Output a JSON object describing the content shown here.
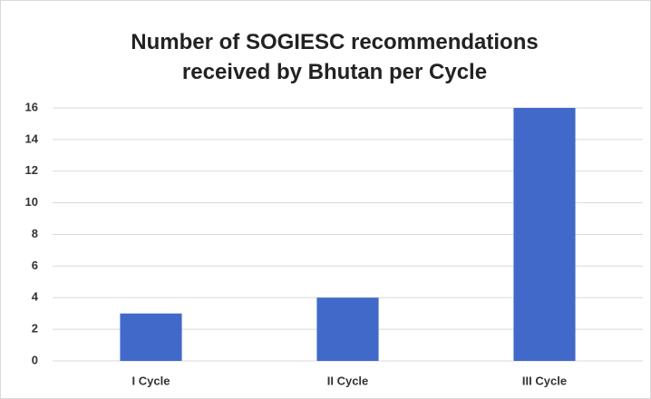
{
  "chart_data": {
    "type": "bar",
    "title": "Number of SOGIESC recommendations received by Bhutan per Cycle",
    "categories": [
      "I Cycle",
      "II Cycle",
      "III Cycle"
    ],
    "values": [
      3,
      4,
      16
    ],
    "color": "#4169c9",
    "ylim": [
      0,
      16
    ],
    "yticks": [
      0,
      2,
      4,
      6,
      8,
      10,
      12,
      14,
      16
    ],
    "grid": true
  }
}
